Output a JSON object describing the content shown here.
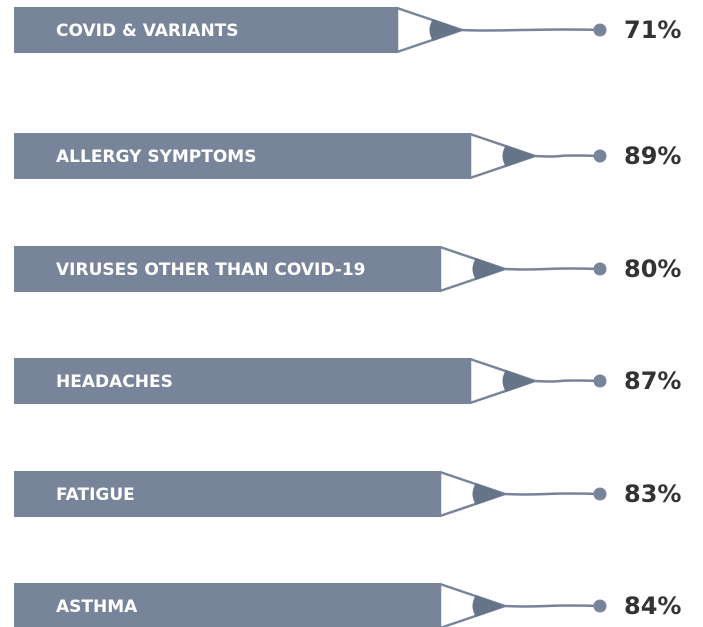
{
  "items": [
    {
      "label": "COVID & VARIANTS",
      "value": "71%"
    },
    {
      "label": "ALLERGY SYMPTOMS",
      "value": "89%"
    },
    {
      "label": "VIRUSES OTHER THAN COVID-19",
      "value": "80%"
    },
    {
      "label": "HEADACHES",
      "value": "87%"
    },
    {
      "label": "FATIGUE",
      "value": "83%"
    },
    {
      "label": "ASTHMA",
      "value": "84%"
    }
  ]
}
